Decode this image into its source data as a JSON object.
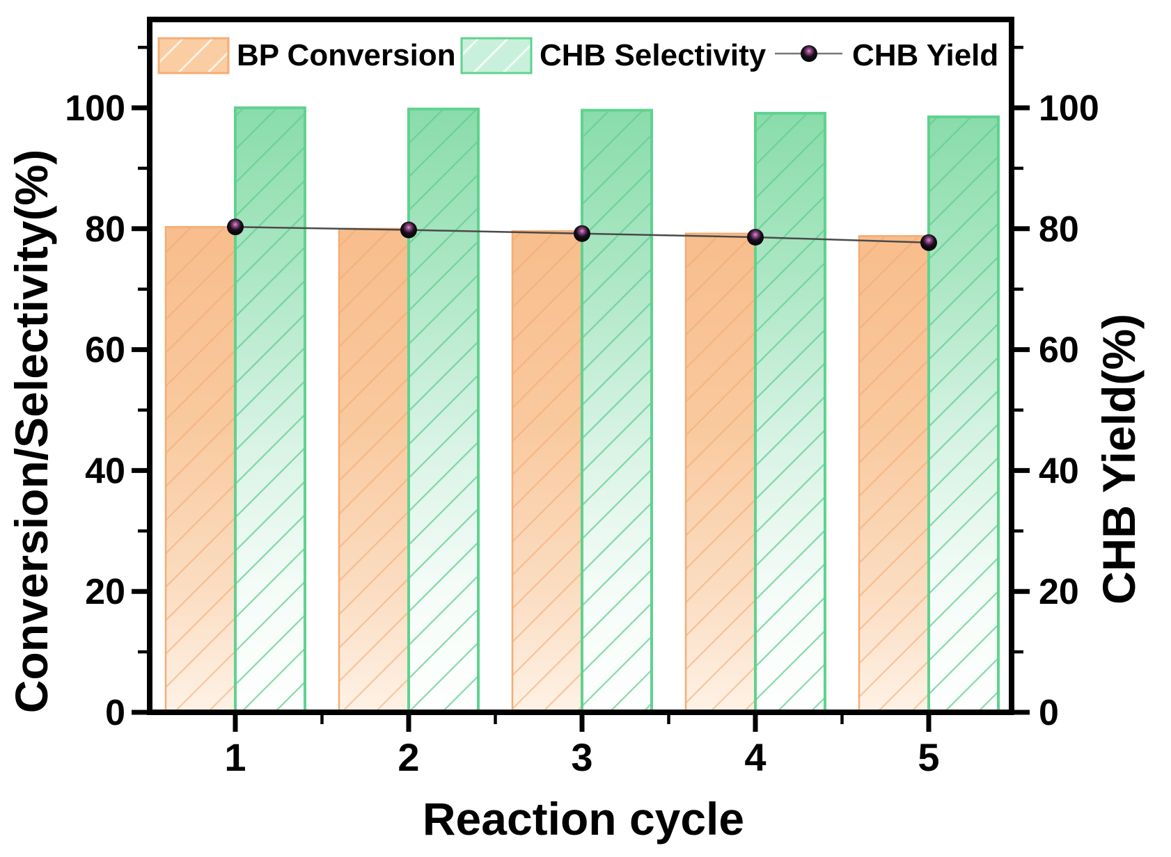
{
  "chart_data": {
    "type": "bar",
    "subtype": "grouped-bars-with-line-overlay",
    "title": "",
    "xlabel": "Reaction cycle",
    "ylabel_left": "Conversion/Selectivity(%)",
    "ylabel_right": "CHB Yield(%)",
    "categories": [
      1,
      2,
      3,
      4,
      5
    ],
    "xticks": [
      "1",
      "2",
      "3",
      "4",
      "5"
    ],
    "yticks": [
      0,
      20,
      40,
      60,
      80,
      100
    ],
    "yticks_minor": [
      10,
      30,
      50,
      70,
      90,
      110
    ],
    "ytick_labels": [
      "0",
      "20",
      "40",
      "60",
      "80",
      "100"
    ],
    "ylim": [
      0,
      114.6
    ],
    "xlim": [
      0.5,
      5.5
    ],
    "grid": false,
    "legend_position": "top-inside",
    "series": [
      {
        "name": "BP Conversion",
        "type": "bar",
        "axis": "left",
        "values": [
          80.3,
          80.0,
          79.6,
          79.2,
          78.8
        ]
      },
      {
        "name": "CHB Selectivity",
        "type": "bar",
        "axis": "left",
        "values": [
          100.0,
          99.8,
          99.6,
          99.1,
          98.5
        ]
      },
      {
        "name": "CHB Yield",
        "type": "line",
        "axis": "right",
        "values": [
          80.3,
          79.8,
          79.2,
          78.6,
          77.7
        ]
      }
    ]
  },
  "style": {
    "orange": {
      "fill_stops": [
        [
          "0%",
          "#F8BD8C"
        ],
        [
          "40%",
          "#F9C99E"
        ],
        [
          "75%",
          "#FBDDC2"
        ],
        [
          "100%",
          "#FEF2E6"
        ]
      ],
      "hatch": "rgba(242,166,105,0.55)",
      "border": "#F3AD76"
    },
    "green": {
      "fill_stops": [
        [
          "0%",
          "#8ADCAB"
        ],
        [
          "25%",
          "#A9E6C2"
        ],
        [
          "55%",
          "#D8F3E5"
        ],
        [
          "80%",
          "#F5FCF8"
        ],
        [
          "100%",
          "#FEFFFE"
        ]
      ],
      "hatch": "rgba(96,205,143,0.75)",
      "border": "#5FD28F"
    },
    "line": {
      "stroke": "#4A4A4A",
      "marker_body": "#000000",
      "marker_highlight": "#DA8FC9"
    },
    "legend_swatch": {
      "orange_fill": "#FACDA2",
      "orange_hatch": "rgba(255,243,230,0.95)",
      "green_fill": "#C9F0DB",
      "green_hatch": "rgba(245,253,249,0.95)",
      "line_color": "#777777"
    },
    "frame_color": "#000000"
  }
}
